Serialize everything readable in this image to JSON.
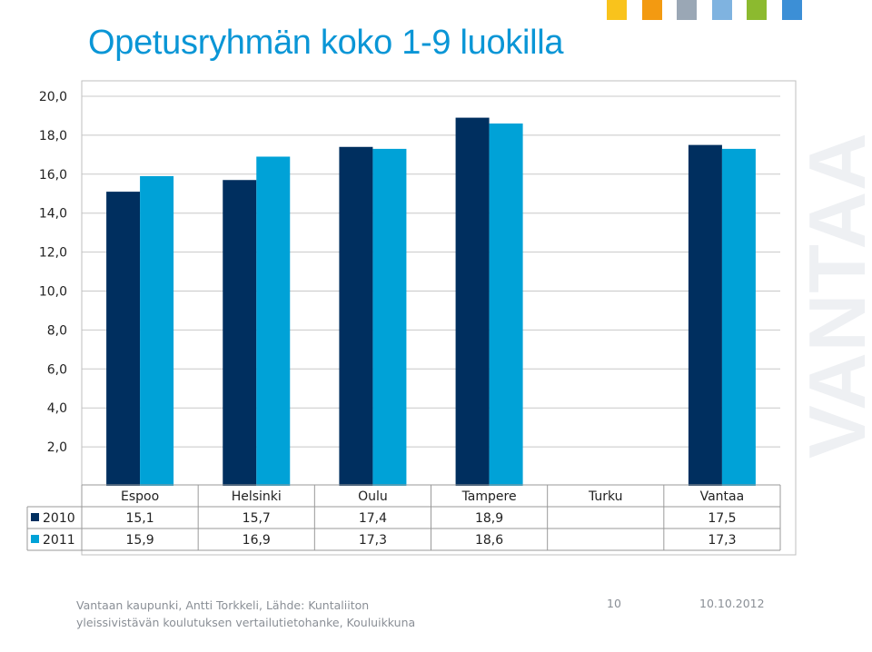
{
  "title": "Opetusryhmän koko 1-9 luokilla",
  "logo_text": "VANTAA",
  "corner_colors": [
    "#f9c31c",
    "#f39a11",
    "#9aa7b5",
    "#7fb3e0",
    "#8cba2f",
    "#3c8fd6"
  ],
  "chart_data": {
    "type": "bar",
    "categories": [
      "Espoo",
      "Helsinki",
      "Oulu",
      "Tampere",
      "Turku",
      "Vantaa"
    ],
    "series": [
      {
        "name": "2010",
        "color": "#002f5f",
        "values": [
          15.1,
          15.7,
          17.4,
          18.9,
          null,
          17.5
        ],
        "labels": [
          "15,1",
          "15,7",
          "17,4",
          "18,9",
          "",
          "17,5"
        ]
      },
      {
        "name": "2011",
        "color": "#00a2d7",
        "values": [
          15.9,
          16.9,
          17.3,
          18.6,
          null,
          17.3
        ],
        "labels": [
          "15,9",
          "16,9",
          "17,3",
          "18,6",
          "",
          "17,3"
        ]
      }
    ],
    "ylim": [
      0,
      20
    ],
    "yticks": [
      "2,0",
      "4,0",
      "6,0",
      "8,0",
      "10,0",
      "12,0",
      "14,0",
      "16,0",
      "18,0",
      "20,0"
    ],
    "grid": true,
    "legend": "data-table"
  },
  "footer": {
    "source": "Vantaan kaupunki, Antti Torkkeli, Lähde: Kuntaliiton yleissivistävän koulutuksen vertailutietohanke, Kouluikkuna",
    "page": "10",
    "date": "10.10.2012"
  }
}
